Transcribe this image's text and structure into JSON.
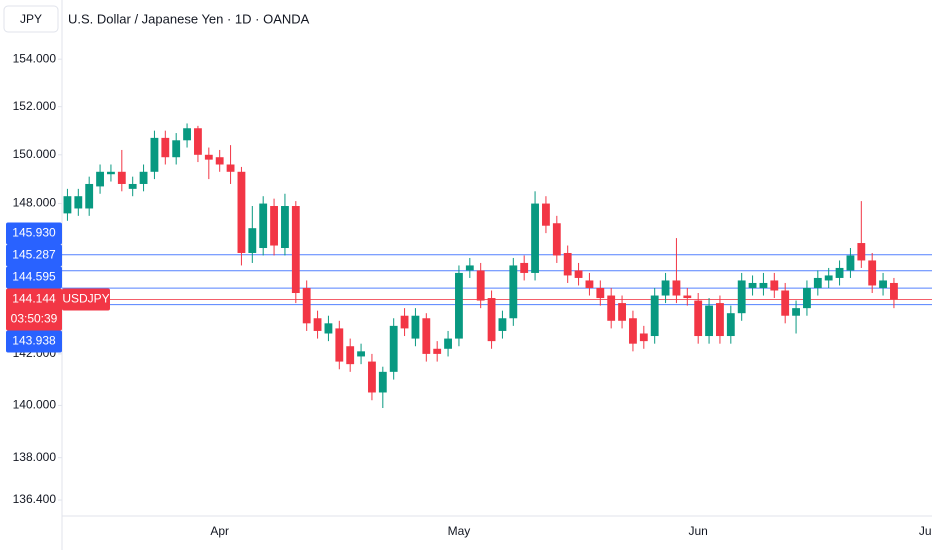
{
  "chart_data": {
    "type": "candlestick",
    "title": "U.S. Dollar / Japanese Yen · 1D · OANDA",
    "y_axis_label": "JPY",
    "log_scale": true,
    "categories": [
      null,
      null,
      null,
      null,
      null,
      null,
      null,
      null,
      null,
      null,
      null,
      null,
      null,
      null,
      "Apr",
      null,
      null,
      null,
      null,
      null,
      null,
      null,
      null,
      null,
      null,
      null,
      null,
      null,
      null,
      null,
      null,
      null,
      null,
      null,
      null,
      null,
      "May",
      null,
      null,
      null,
      null,
      null,
      null,
      null,
      null,
      null,
      null,
      null,
      null,
      null,
      null,
      null,
      null,
      null,
      null,
      null,
      null,
      null,
      "Jun",
      null,
      null,
      null,
      null,
      null,
      null,
      null,
      null,
      null,
      null,
      null,
      null,
      null,
      null,
      null,
      null,
      null,
      null,
      null,
      null,
      "Jul"
    ],
    "open": [
      147.6,
      147.8,
      147.8,
      148.7,
      149.2,
      149.3,
      148.6,
      148.8,
      149.3,
      150.7,
      149.9,
      150.6,
      151.1,
      150.0,
      149.9,
      149.6,
      149.3,
      146.0,
      146.2,
      147.9,
      146.2,
      147.9,
      144.6,
      143.4,
      142.8,
      143.0,
      142.3,
      141.9,
      141.7,
      140.5,
      141.3,
      143.5,
      142.6,
      143.4,
      142.2,
      142.2,
      142.6,
      145.3,
      145.3,
      144.2,
      142.9,
      143.4,
      145.6,
      145.2,
      148.0,
      147.2,
      146.0,
      145.3,
      144.9,
      144.6,
      144.3,
      144.0,
      143.4,
      142.8,
      142.7,
      144.3,
      144.9,
      144.3,
      144.1,
      142.7,
      144.0,
      142.7,
      143.6,
      144.6,
      144.6,
      144.9,
      144.5,
      143.5,
      143.8,
      144.6,
      144.9,
      145.0,
      145.3,
      146.4,
      145.7,
      144.6,
      144.8,
      null,
      null,
      null
    ],
    "high": [
      148.6,
      148.6,
      149.1,
      149.6,
      149.6,
      150.2,
      149.1,
      149.6,
      151.0,
      151.0,
      150.9,
      151.3,
      151.2,
      150.3,
      150.2,
      150.4,
      149.5,
      147.9,
      148.3,
      148.2,
      148.4,
      148.1,
      144.9,
      143.7,
      143.5,
      143.3,
      142.6,
      142.4,
      142.0,
      141.5,
      143.4,
      143.8,
      143.8,
      143.6,
      142.5,
      142.9,
      145.5,
      145.8,
      145.6,
      144.5,
      143.7,
      145.8,
      145.9,
      148.5,
      148.3,
      147.5,
      146.3,
      145.6,
      145.2,
      144.9,
      144.6,
      144.3,
      143.7,
      143.1,
      144.6,
      145.2,
      146.6,
      144.6,
      144.4,
      144.2,
      144.3,
      143.9,
      145.2,
      145.1,
      145.2,
      145.2,
      144.8,
      144.1,
      144.9,
      145.3,
      145.4,
      145.7,
      146.2,
      148.1,
      146.0,
      145.2,
      145.0,
      null,
      null,
      null
    ],
    "low": [
      147.3,
      147.5,
      147.5,
      148.4,
      148.9,
      148.5,
      148.3,
      148.5,
      149.0,
      149.6,
      149.6,
      150.3,
      149.7,
      149.0,
      149.3,
      148.8,
      145.5,
      145.6,
      145.9,
      145.9,
      145.9,
      144.0,
      142.9,
      142.6,
      142.5,
      141.4,
      141.3,
      141.6,
      140.2,
      139.9,
      141.0,
      142.7,
      142.3,
      141.7,
      141.7,
      141.9,
      142.3,
      145.0,
      143.8,
      142.2,
      142.6,
      143.1,
      144.9,
      144.9,
      146.8,
      145.6,
      144.8,
      144.7,
      144.3,
      143.9,
      143.0,
      143.0,
      142.1,
      142.2,
      142.4,
      144.0,
      144.0,
      143.9,
      142.4,
      142.4,
      142.4,
      142.4,
      143.3,
      144.3,
      144.3,
      144.2,
      143.2,
      142.8,
      143.5,
      144.3,
      144.6,
      144.7,
      145.0,
      145.4,
      144.4,
      144.3,
      143.8,
      null,
      null,
      null
    ],
    "close": [
      148.3,
      148.3,
      148.8,
      149.3,
      149.3,
      148.8,
      148.8,
      149.3,
      150.7,
      149.9,
      150.6,
      151.1,
      150.0,
      149.8,
      149.6,
      149.3,
      146.0,
      147.0,
      148.0,
      146.3,
      147.9,
      144.4,
      143.2,
      142.9,
      143.2,
      141.7,
      141.6,
      142.1,
      140.5,
      141.3,
      143.1,
      143.0,
      143.5,
      142.0,
      142.0,
      142.6,
      145.2,
      145.5,
      144.1,
      142.5,
      143.4,
      145.5,
      145.2,
      148.0,
      147.1,
      145.9,
      145.1,
      145.0,
      144.6,
      144.2,
      143.3,
      143.3,
      142.4,
      142.5,
      144.3,
      144.9,
      144.3,
      144.2,
      142.7,
      143.9,
      142.7,
      143.6,
      144.9,
      144.8,
      144.8,
      144.5,
      143.5,
      143.8,
      144.6,
      145.0,
      145.1,
      145.4,
      145.9,
      145.7,
      144.7,
      144.9,
      144.144,
      null,
      null,
      null
    ],
    "up_color": "#089981",
    "down_color": "#f23645",
    "ylim": [
      135.84,
      156.53
    ],
    "yticks": [
      {
        "value": 154,
        "label": "154.000"
      },
      {
        "value": 152,
        "label": "152.000"
      },
      {
        "value": 150,
        "label": "150.000"
      },
      {
        "value": 148,
        "label": "148.000"
      },
      {
        "value": 142,
        "label": "142.000"
      },
      {
        "value": 140,
        "label": "140.000"
      },
      {
        "value": 138,
        "label": "138.000"
      },
      {
        "value": 136.4,
        "label": "136.400"
      }
    ],
    "price_lines": [
      {
        "value": 145.93,
        "label": "145.930",
        "color": "#2962ff"
      },
      {
        "value": 145.287,
        "label": "145.287",
        "color": "#2962ff"
      },
      {
        "value": 144.595,
        "label": "144.595",
        "color": "#2962ff"
      },
      {
        "value": 144.144,
        "label": "144.144",
        "color": "#f23645",
        "symbol": "USDJPY",
        "countdown": "03:50:39"
      },
      {
        "value": 143.938,
        "label": "143.938",
        "color": "#2962ff"
      }
    ]
  }
}
